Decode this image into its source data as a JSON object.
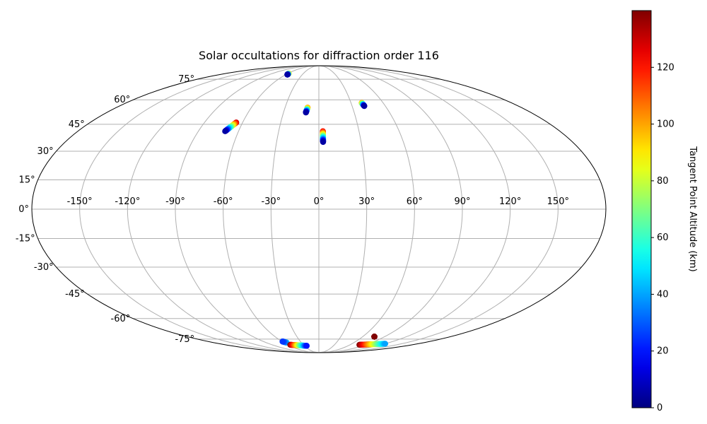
{
  "chart_data": {
    "type": "scatter",
    "title": "Solar occultations for diffraction order 116",
    "projection": "mollweide",
    "grid": true,
    "longitude_ticks": [
      "-150°",
      "-120°",
      "-90°",
      "-60°",
      "-30°",
      "0°",
      "30°",
      "60°",
      "90°",
      "120°",
      "150°"
    ],
    "latitude_ticks": [
      "75°",
      "60°",
      "45°",
      "30°",
      "15°",
      "0°",
      "-15°",
      "-30°",
      "-45°",
      "-60°",
      "-75°"
    ],
    "colorbar": {
      "label": "Tangent Point Altitude (km)",
      "colormap": "jet",
      "range": [
        0,
        140
      ],
      "ticks": [
        "0",
        "20",
        "40",
        "60",
        "80",
        "100",
        "120"
      ]
    },
    "tracks": [
      {
        "lon_start": -57,
        "lat_start": 79,
        "lon_end": -58,
        "lat_end": 80,
        "alt_start": 5,
        "alt_end": 100
      },
      {
        "lon_start": -70,
        "lat_start": 41,
        "lon_end": -65,
        "lat_end": 46,
        "alt_start": 5,
        "alt_end": 130
      },
      {
        "lon_start": -11,
        "lat_start": 52,
        "lon_end": -10,
        "lat_end": 55,
        "alt_start": 5,
        "alt_end": 105
      },
      {
        "lon_start": 3,
        "lat_start": 35,
        "lon_end": 3,
        "lat_end": 41,
        "alt_start": 5,
        "alt_end": 125
      },
      {
        "lon_start": 41,
        "lat_start": 56,
        "lon_end": 40,
        "lat_end": 58,
        "alt_start": 5,
        "alt_end": 100
      },
      {
        "lon_start": -59,
        "lat_start": -77,
        "lon_end": -55,
        "lat_end": -78,
        "alt_start": 25,
        "alt_end": 45
      },
      {
        "lon_start": -55,
        "lat_start": -80,
        "lon_end": -25,
        "lat_end": -81,
        "alt_start": 140,
        "alt_end": 20
      },
      {
        "lon_start": 78,
        "lat_start": -80,
        "lon_end": 120,
        "lat_end": -79,
        "alt_start": 140,
        "alt_end": 40
      },
      {
        "lon_start": 76,
        "lat_start": -73,
        "lon_end": 76,
        "lat_end": -73,
        "alt_start": 140,
        "alt_end": 140
      }
    ]
  }
}
